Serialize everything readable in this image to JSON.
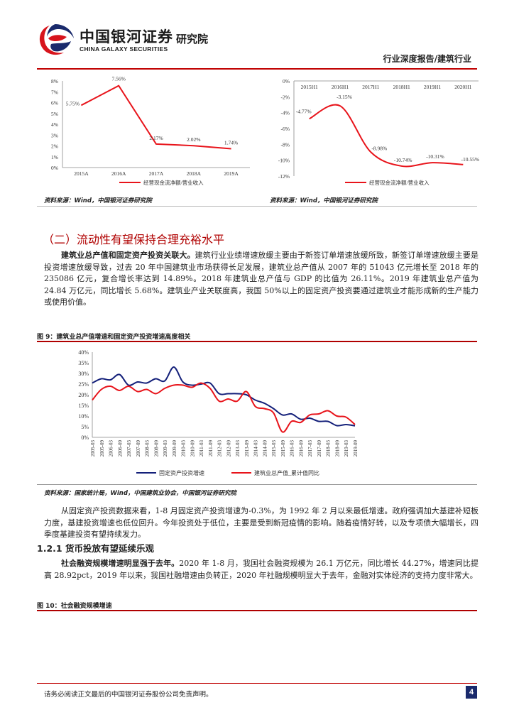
{
  "header": {
    "logo_cn": "中国银河证券",
    "logo_en": "CHINA GALAXY SECURITIES",
    "institute": "研究院",
    "report_type": "行业深度报告/建筑行业"
  },
  "charts_top": {
    "left_source": "资料来源：Wind，中国银河证券研究院",
    "right_source": "资料来源：Wind，中国银河证券研究院"
  },
  "section": {
    "title": "（二）流动性有望保持合理充裕水平",
    "para1_bold": "建筑业总产值和固定资产投资关联大。",
    "para1_text": "建筑行业业绩增速放缓主要由于新签订单增速放缓所致，新签订单增速放缓主要是投资增速放缓导致，过去 20 年中国建筑业市场获得长足发展，建筑业总产值从 2007 年的 51043 亿元增长至 2018 年的 235086 亿元，复合增长率达到 14.89%。2018 年建筑业总产值与 GDP 的比值为 26.11%。2019 年建筑业总产值为 24.84 万亿元，同比增长 5.68%。建筑业产业关联度高，我国 50%以上的固定资产投资要通过建筑业才能形成新的生产能力或使用价值。",
    "fig9_caption": "图 9：建筑业总产值增速和固定资产投资增速高度相关",
    "fig9_source": "资料来源：国家统计局，Wind，中国建筑业协会，中国银河证券研究院",
    "para2": "从固定资产投资数据来看，1-8 月固定资产投资增速为-0.3%，为 1992 年 2 月以来最低增速。政府强调加大基建补短板力度，基建投资增速也低位回升。今年投资处于低位，主要是受到新冠疫情的影响。随着疫情好转，以及专项债大幅增长，四季度基建投资有望持续发力。",
    "subsection_title": "1.2.1 货币投放有望延续乐观",
    "para3_bold": "社会融资规模增速明显强于去年。",
    "para3_text": "2020 年 1-8 月，我国社会融资规模为 26.1 万亿元，同比增长 44.27%，增速同比提高 28.92pct，2019 年以来，我国社融增速由负转正，2020 年社融规模明显大于去年，金融对实体经济的支持力度非常大。",
    "fig10_caption": "图 10：社会融资规模增速"
  },
  "footer": {
    "disclaimer": "请务必阅读正文最后的中国银河证券股份公司免责声明。",
    "page_number": "4"
  },
  "colors": {
    "brand_red": "#c00000",
    "line_red": "#e8141b",
    "line_blue": "#14207a",
    "title_red": "#b00000"
  },
  "chart_data": [
    {
      "type": "line",
      "categories": [
        "2015A",
        "2016A",
        "2017A",
        "2018A",
        "2019A"
      ],
      "series": [
        {
          "name": "经营现金流净额/营业收入",
          "values": [
            5.75,
            7.56,
            2.17,
            2.02,
            1.74
          ],
          "color": "#e8141b"
        }
      ],
      "data_labels": [
        "5.75%",
        "7.56%",
        "2.17%",
        "2.02%",
        "1.74%"
      ],
      "yticks": [
        "0%",
        "1%",
        "2%",
        "3%",
        "4%",
        "5%",
        "6%",
        "7%",
        "8%"
      ],
      "ylim": [
        0,
        8
      ],
      "legend": "bottom"
    },
    {
      "type": "line",
      "categories": [
        "2015H1",
        "2016H1",
        "2017H1",
        "2018H1",
        "2019H1",
        "2020H1"
      ],
      "series": [
        {
          "name": "经营现金流净额/营业收入",
          "values": [
            -4.77,
            -3.15,
            -8.98,
            -10.74,
            -10.31,
            -10.55
          ],
          "color": "#e8141b"
        }
      ],
      "data_labels": [
        "-4.77%",
        "-3.15%",
        "-8.98%",
        "-10.74%",
        "-10.31%",
        "-10.55%"
      ],
      "yticks": [
        "0%",
        "-2%",
        "-4%",
        "-6%",
        "-8%",
        "-10%",
        "-12%"
      ],
      "ylim": [
        -12,
        0
      ],
      "legend": "bottom"
    },
    {
      "type": "line",
      "x": [
        "2005-03",
        "2005-09",
        "2006-03",
        "2006-09",
        "2007-03",
        "2007-09",
        "2008-03",
        "2008-09",
        "2009-03",
        "2009-09",
        "2010-03",
        "2010-09",
        "2011-03",
        "2011-09",
        "2012-03",
        "2012-09",
        "2013-03",
        "2013-09",
        "2014-03",
        "2014-09",
        "2015-03",
        "2015-09",
        "2016-03",
        "2016-09",
        "2017-03",
        "2017-09",
        "2018-03",
        "2018-09",
        "2019-03",
        "2019-09"
      ],
      "series": [
        {
          "name": "固定资产投资增速",
          "color": "#14207a",
          "values": [
            25.5,
            27.5,
            27,
            29.5,
            24.5,
            26,
            25.5,
            27.5,
            26.5,
            33,
            26,
            24.5,
            25,
            25.5,
            20.5,
            20.5,
            20.5,
            20,
            17.5,
            16,
            13.5,
            10.5,
            11,
            8.5,
            9,
            7.5,
            7.5,
            5.5,
            6,
            5.4
          ]
        },
        {
          "name": "建筑业总产值_累计值同比",
          "color": "#e8141b",
          "values": [
            17.5,
            22.5,
            24,
            22,
            24,
            21.5,
            22.5,
            20.5,
            23,
            24.5,
            24.5,
            23.5,
            25.5,
            23,
            17,
            18,
            17,
            21.5,
            14.5,
            13.5,
            11.5,
            2.5,
            7.5,
            7,
            10.5,
            11,
            12.5,
            10,
            9.5,
            6
          ]
        }
      ],
      "yticks": [
        "0%",
        "5%",
        "10%",
        "15%",
        "20%",
        "25%",
        "30%",
        "35%",
        "40%"
      ],
      "ylim": [
        0,
        40
      ],
      "legend": "bottom"
    }
  ]
}
